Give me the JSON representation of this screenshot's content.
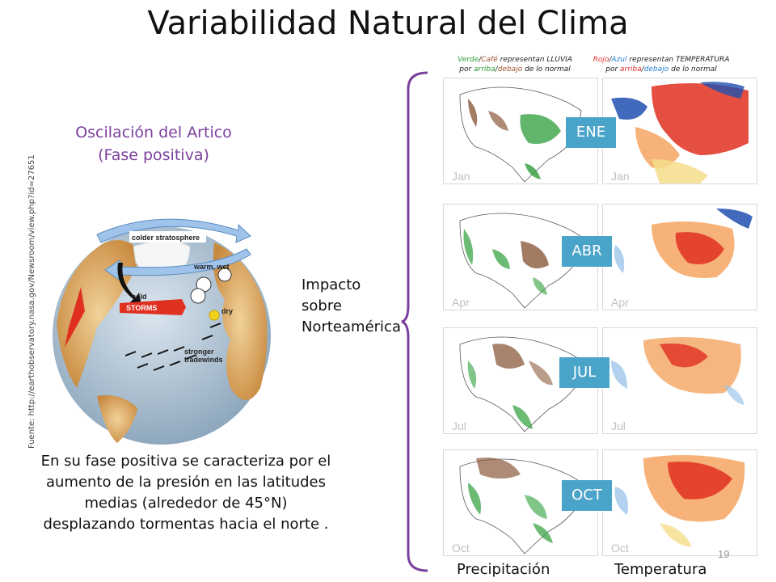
{
  "slide": {
    "title": "Variabilidad Natural del Clima",
    "ao_title_line1": "Oscilación del Artico",
    "ao_title_line2": "(Fase positiva)",
    "source": "Fuente: http://earthobservatory.nasa.gov/Newsroom/view.php?id=27651",
    "impact_lines": [
      "Impacto",
      "sobre",
      "Norteamérica"
    ],
    "description_lines": [
      "En su fase positiva se caracteriza por el",
      "aumento de la presión en las latitudes",
      "medias (alrededor de 45°N)",
      "desplazando tormentas hacia el norte ."
    ],
    "page_number": "19"
  },
  "globe": {
    "labels": {
      "colder": "colder stratosphere",
      "warm": "warm, wet",
      "cold": "cold",
      "storms": "STORMS",
      "dry": "dry",
      "tradewinds_line1": "stronger",
      "tradewinds_line2": "tradewinds"
    }
  },
  "legend": {
    "left": {
      "word1": "Verde",
      "sep1": "/",
      "word2": "Café",
      "rest1": " representan LLUVIA",
      "line2_a": "por ",
      "word3": "arriba",
      "sep2": "/",
      "word4": "debajo",
      "line2_b": " de lo normal"
    },
    "right": {
      "word1": "Rojo",
      "sep1": "/",
      "word2": "Azul",
      "rest1": " representan TEMPERATURA",
      "line2_a": "por ",
      "word3": "arriba",
      "sep2": "/",
      "word4": "debajo",
      "line2_b": " de lo normal"
    }
  },
  "months": [
    {
      "label": "ENE",
      "map_label": "Jan"
    },
    {
      "label": "ABR",
      "map_label": "Apr"
    },
    {
      "label": "JUL",
      "map_label": "Jul"
    },
    {
      "label": "OCT",
      "map_label": "Oct"
    }
  ],
  "columns": {
    "precip": "Precipitación",
    "temp": "Temperatura"
  },
  "colors": {
    "title_purple": "#7b3f9e",
    "month_badge": "#4aa3c9",
    "bracket": "#7b3f9e",
    "precip_green": "#2e9e3a",
    "precip_brown": "#8b5a3c",
    "temp_red": "#e03020",
    "temp_orange": "#f4a460",
    "temp_blue": "#2050b0"
  }
}
